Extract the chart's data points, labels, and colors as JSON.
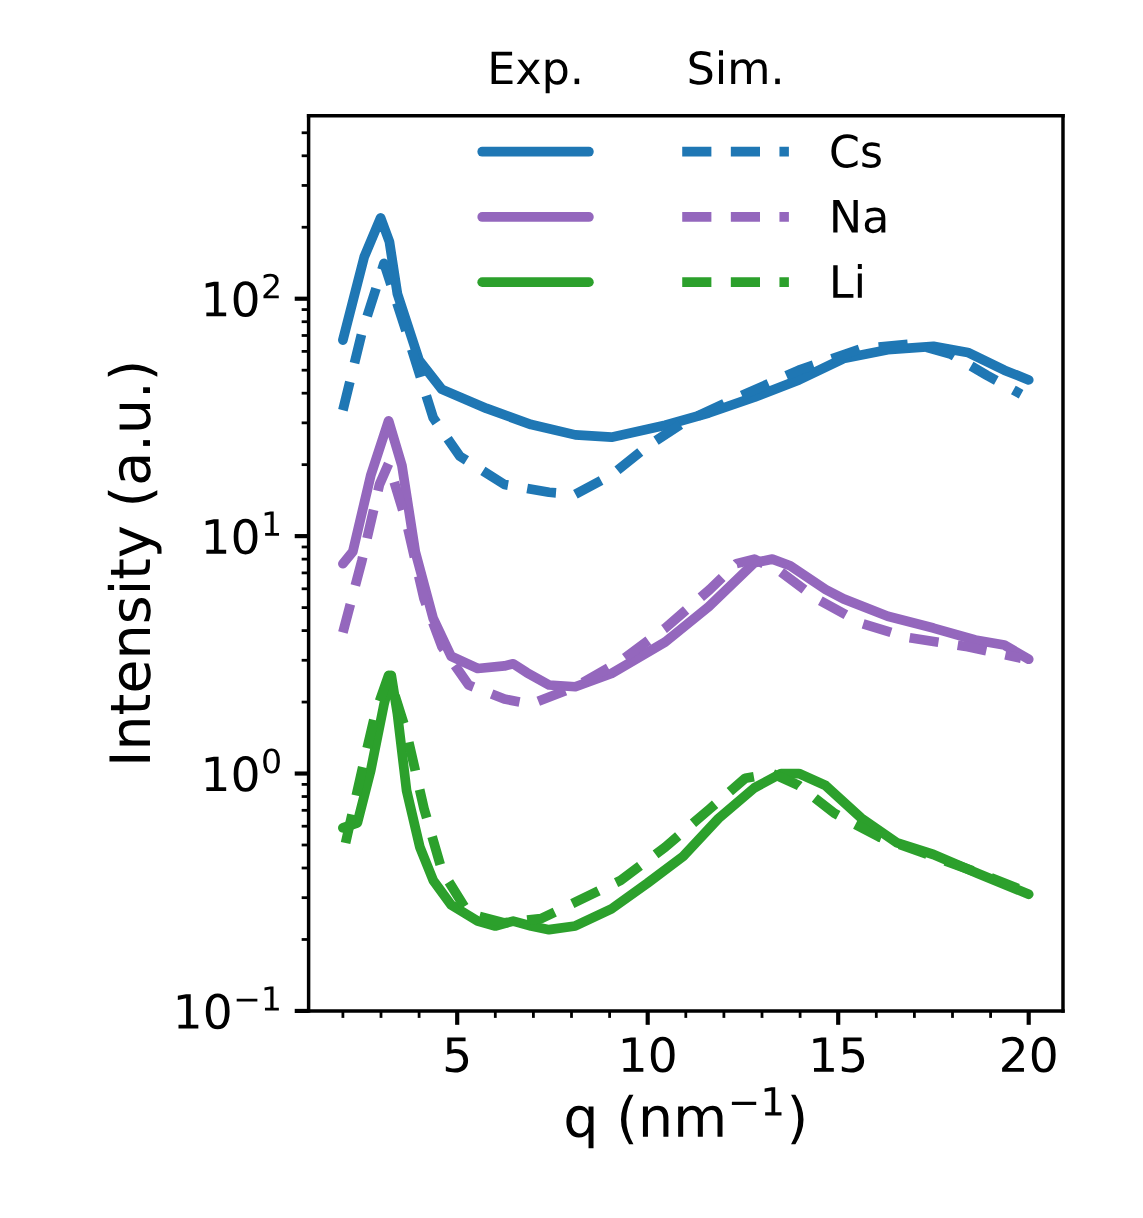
{
  "chart_data": {
    "type": "line",
    "xlabel": "q (nm$^{−1}$)",
    "ylabel": "Intensity (a.u.)",
    "annotations": [
      "Exp.",
      "Sim."
    ],
    "log": "y",
    "xlim": [
      1.1,
      20.9
    ],
    "ylim": [
      0.1,
      590
    ],
    "xticks": [
      5,
      10,
      15,
      20
    ],
    "yticks": [
      {
        "value": 0.1,
        "label": "10$^{−1}$"
      },
      {
        "value": 1,
        "label": "10$^{0}$"
      },
      {
        "value": 10,
        "label": "10$^{1}$"
      },
      {
        "value": 100,
        "label": "10$^{2}$"
      }
    ],
    "grid": false,
    "legend": "top",
    "marker": "none",
    "series": [
      {
        "color": "#1f77b4",
        "line_style": "solid",
        "x": [
          2.0,
          2.56,
          2.99,
          3.22,
          3.43,
          4.0,
          4.6,
          5.77,
          6.94,
          8.1,
          9.05,
          10.46,
          11.6,
          12.8,
          13.97,
          15.14,
          16.3,
          17.5,
          18.4,
          19.36,
          20.0
        ],
        "values": [
          67,
          150,
          219,
          174,
          105,
          55,
          41.5,
          34.5,
          29.5,
          26.7,
          26.1,
          29.3,
          33,
          38.5,
          45.5,
          56,
          61,
          63,
          59.4,
          50,
          45.5
        ]
      },
      {
        "color": "#9467bd",
        "line_style": "solid",
        "x": [
          2.0,
          2.26,
          2.73,
          3.2,
          3.55,
          3.9,
          4.37,
          4.84,
          5.54,
          6.24,
          6.47,
          6.83,
          7.41,
          8.1,
          9.05,
          10.46,
          11.6,
          12.8,
          13.27,
          13.74,
          14.67,
          15.14,
          16.3,
          17.5,
          18.6,
          19.36,
          20.0
        ],
        "values": [
          7.65,
          8.6,
          18,
          30.6,
          19.8,
          8.6,
          4.5,
          3.12,
          2.77,
          2.84,
          2.9,
          2.66,
          2.36,
          2.32,
          2.64,
          3.58,
          5.04,
          7.72,
          8.0,
          7.5,
          5.96,
          5.44,
          4.6,
          4.1,
          3.65,
          3.48,
          3.03
        ]
      },
      {
        "color": "#2ca02c",
        "line_style": "solid",
        "x": [
          2.0,
          2.38,
          2.73,
          3.08,
          3.27,
          3.43,
          3.67,
          4.02,
          4.37,
          4.84,
          5.54,
          6.0,
          6.47,
          6.94,
          7.41,
          8.1,
          9.05,
          9.99,
          10.93,
          11.86,
          12.8,
          13.5,
          13.97,
          14.67,
          15.6,
          16.55,
          17.5,
          18.65,
          20.0
        ],
        "values": [
          0.59,
          0.62,
          1.03,
          1.96,
          2.59,
          1.79,
          0.85,
          0.49,
          0.355,
          0.28,
          0.239,
          0.228,
          0.239,
          0.228,
          0.22,
          0.228,
          0.269,
          0.345,
          0.448,
          0.647,
          0.87,
          1.0,
          1.0,
          0.89,
          0.65,
          0.51,
          0.456,
          0.38,
          0.31
        ]
      },
      {
        "name": "Cs",
        "color": "#1f77b4",
        "line_style": "dashed",
        "x": [
          2.0,
          2.5,
          3.08,
          3.67,
          4.37,
          5.07,
          6.24,
          7.41,
          8.1,
          9.05,
          9.99,
          10.93,
          12.3,
          13.97,
          15.6,
          17.0,
          17.95,
          18.9,
          19.8
        ],
        "values": [
          33.9,
          72,
          141,
          72,
          31.5,
          21.7,
          16.5,
          15.3,
          15.0,
          18.1,
          23.9,
          30,
          38,
          50,
          61.6,
          64.6,
          58.5,
          47.6,
          39.6
        ]
      },
      {
        "name": "Na",
        "color": "#9467bd",
        "line_style": "dashed",
        "x": [
          2.0,
          2.5,
          2.96,
          3.2,
          3.67,
          4.13,
          4.6,
          5.3,
          6.24,
          6.94,
          8.1,
          9.29,
          10.46,
          11.63,
          12.33,
          12.8,
          13.5,
          14.44,
          15.6,
          16.8,
          18.4,
          19.8
        ],
        "values": [
          3.93,
          7.9,
          16.5,
          20.2,
          11.4,
          5.44,
          3.42,
          2.36,
          2.06,
          1.96,
          2.32,
          2.98,
          4.1,
          5.96,
          7.66,
          8.0,
          7.05,
          5.44,
          4.3,
          3.75,
          3.42,
          3.06
        ]
      },
      {
        "name": "Li",
        "color": "#2ca02c",
        "line_style": "dashed",
        "x": [
          2.07,
          2.5,
          2.85,
          3.2,
          3.67,
          4.13,
          4.6,
          5.3,
          6.24,
          7.2,
          8.1,
          9.29,
          10.46,
          11.63,
          12.56,
          13.27,
          13.97,
          14.9,
          16.08,
          17.5,
          18.9,
          20.0
        ],
        "values": [
          0.51,
          1.03,
          1.79,
          2.59,
          1.49,
          0.71,
          0.39,
          0.257,
          0.235,
          0.245,
          0.287,
          0.355,
          0.49,
          0.71,
          0.955,
          1.0,
          0.89,
          0.68,
          0.54,
          0.447,
          0.37,
          0.315
        ]
      }
    ]
  }
}
